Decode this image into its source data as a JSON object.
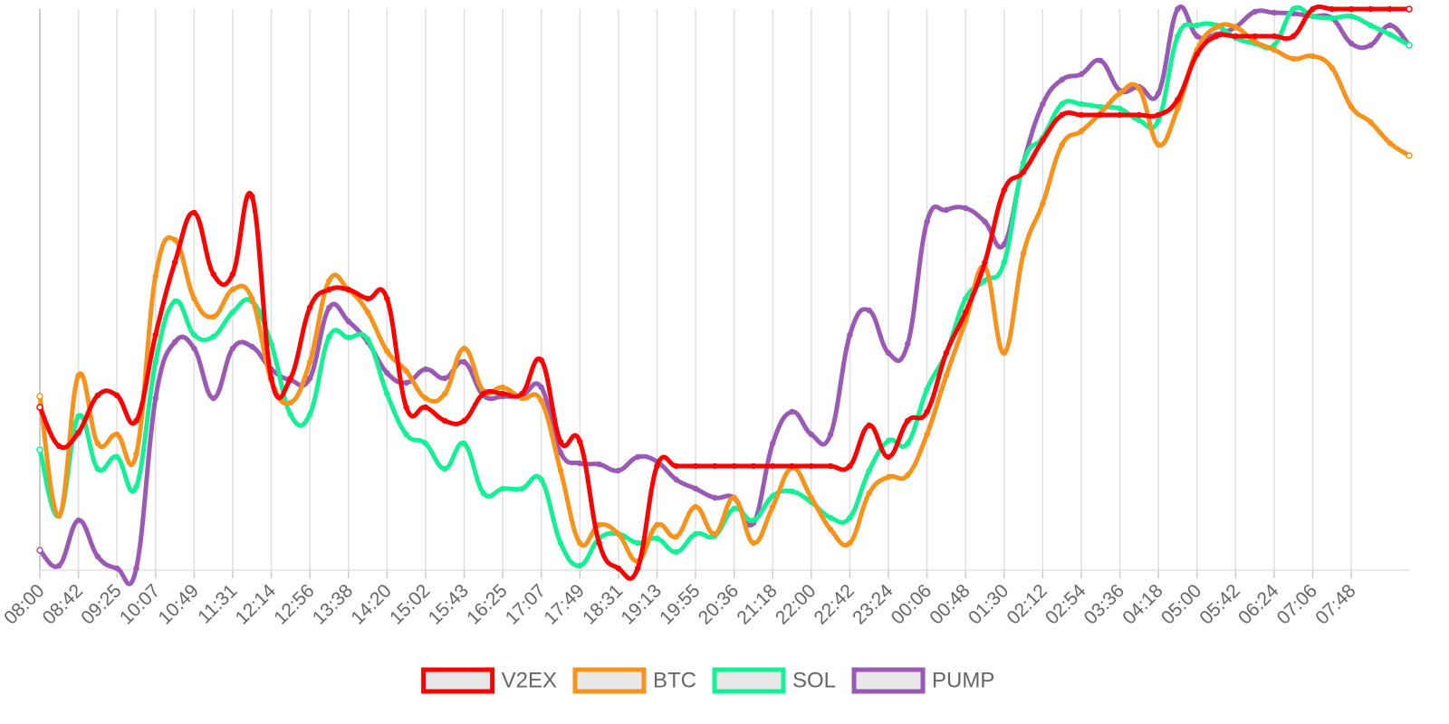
{
  "chart_data": {
    "type": "line",
    "categories": [
      "08:00",
      null,
      "08:42",
      null,
      "09:25",
      null,
      "10:07",
      null,
      "10:49",
      null,
      "11:31",
      null,
      "12:14",
      null,
      "12:56",
      null,
      "13:38",
      null,
      "14:20",
      null,
      "15:02",
      null,
      "15:43",
      null,
      "16:25",
      null,
      "17:07",
      null,
      "17:49",
      null,
      "18:31",
      null,
      "19:13",
      null,
      "19:55",
      null,
      "20:36",
      null,
      "21:18",
      null,
      "22:00",
      null,
      "22:42",
      null,
      "23:24",
      null,
      "00:06",
      null,
      "00:48",
      null,
      "01:30",
      null,
      "02:12",
      null,
      "02:54",
      null,
      "03:36",
      null,
      "04:18",
      null,
      "05:00",
      null,
      "05:42",
      null,
      "06:24",
      null,
      "07:06",
      null,
      "07:48",
      null,
      null,
      null
    ],
    "ylim": [
      0,
      620
    ],
    "grid": true,
    "legend": "bottom",
    "series": [
      {
        "name": "V2EX",
        "color": "#ff0000",
        "values": [
          180,
          137,
          152,
          193,
          193,
          165,
          260,
          340,
          395,
          327,
          327,
          413,
          212,
          212,
          290,
          310,
          310,
          300,
          300,
          180,
          180,
          165,
          165,
          195,
          195,
          195,
          232,
          142,
          142,
          30,
          2,
          2,
          115,
          115,
          115,
          115,
          115,
          115,
          115,
          115,
          115,
          115,
          115,
          160,
          125,
          165,
          175,
          240,
          285,
          340,
          420,
          440,
          475,
          503,
          503,
          503,
          503,
          503,
          503,
          520,
          570,
          590,
          590,
          590,
          590,
          590,
          620,
          620,
          620,
          620,
          620,
          620
        ]
      },
      {
        "name": "BTC",
        "color": "#f7931a",
        "values": [
          192,
          60,
          215,
          140,
          150,
          128,
          325,
          365,
          300,
          280,
          310,
          300,
          210,
          185,
          230,
          320,
          310,
          285,
          242,
          220,
          190,
          195,
          245,
          198,
          202,
          190,
          187,
          110,
          30,
          50,
          40,
          10,
          50,
          37,
          70,
          40,
          80,
          30,
          70,
          113,
          80,
          45,
          30,
          85,
          103,
          105,
          150,
          215,
          275,
          335,
          240,
          350,
          405,
          470,
          485,
          505,
          527,
          532,
          470,
          510,
          575,
          600,
          600,
          584,
          575,
          565,
          568,
          555,
          512,
          495,
          472,
          458
        ]
      },
      {
        "name": "SOL",
        "color": "#14f195",
        "values": [
          133,
          60,
          170,
          112,
          125,
          92,
          230,
          297,
          260,
          258,
          285,
          297,
          250,
          172,
          172,
          258,
          257,
          255,
          195,
          150,
          140,
          112,
          140,
          85,
          90,
          90,
          100,
          30,
          5,
          35,
          40,
          30,
          35,
          20,
          40,
          38,
          68,
          55,
          82,
          87,
          75,
          58,
          58,
          110,
          143,
          140,
          200,
          240,
          300,
          320,
          340,
          450,
          478,
          515,
          515,
          512,
          510,
          497,
          497,
          590,
          602,
          602,
          588,
          582,
          580,
          620,
          612,
          610,
          612,
          602,
          592,
          580
        ]
      },
      {
        "name": "PUMP",
        "color": "#9b59b6",
        "values": [
          22,
          5,
          55,
          15,
          2,
          2,
          190,
          252,
          245,
          190,
          245,
          247,
          222,
          210,
          212,
          290,
          275,
          252,
          218,
          207,
          222,
          212,
          230,
          193,
          192,
          193,
          202,
          130,
          118,
          117,
          110,
          125,
          120,
          100,
          90,
          80,
          80,
          52,
          140,
          175,
          150,
          150,
          260,
          287,
          240,
          250,
          385,
          398,
          400,
          385,
          360,
          450,
          515,
          542,
          548,
          563,
          530,
          534,
          527,
          620,
          590,
          592,
          600,
          617,
          616,
          615,
          612,
          610,
          582,
          580,
          602,
          580
        ]
      }
    ]
  }
}
